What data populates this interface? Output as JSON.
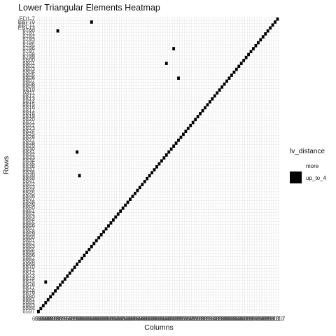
{
  "chart_data": {
    "type": "heatmap",
    "title": "Lower Triangular Elements Heatmap",
    "xlabel": "Columns",
    "ylabel": "Rows",
    "n": 100,
    "diagonal": "filled",
    "row_labels_top_to_bottom": [
      "ED1-7",
      "EBI-70",
      "EBI-11",
      "EBI-13",
      "6790",
      "6791",
      "6792",
      "6793",
      "6794",
      "6795",
      "6796",
      "6797",
      "6798",
      "6799",
      "6800",
      "6801",
      "6802",
      "6803",
      "6804",
      "6805",
      "6806",
      "6807",
      "6808",
      "6809",
      "6810",
      "6811",
      "6812",
      "6813",
      "6814",
      "6815",
      "6816",
      "6817",
      "6818",
      "6819",
      "6820",
      "6821",
      "6822",
      "6823",
      "6824",
      "6825",
      "6826",
      "6827",
      "6828",
      "6829",
      "6830",
      "6831",
      "6832",
      "6833",
      "6834",
      "6835",
      "6836",
      "6837",
      "6838",
      "6839",
      "6840",
      "6841",
      "6842",
      "6843",
      "6844",
      "6845",
      "6846",
      "6847",
      "6848",
      "6849",
      "6850",
      "6851",
      "6852",
      "6853",
      "6854",
      "6855",
      "6856",
      "6857",
      "6858",
      "6859",
      "6860",
      "6861",
      "6862",
      "6863",
      "6864",
      "6865",
      "6866",
      "6867",
      "6868",
      "6869",
      "6870",
      "6871",
      "6872",
      "6873",
      "6874",
      "6875",
      "6876",
      "6877",
      "6878",
      "6879",
      "6880",
      "6881",
      "6882",
      "6883",
      "6884",
      "6597"
    ],
    "x_tick_first": "6597",
    "x_tick_last": "ED1-7",
    "extra_cells": [
      {
        "row_from_top": 4,
        "col": 8
      },
      {
        "row_from_top": 1,
        "col": 22
      },
      {
        "row_from_top": 10,
        "col": 56
      },
      {
        "row_from_top": 15,
        "col": 53
      },
      {
        "row_from_top": 20,
        "col": 58
      },
      {
        "row_from_top": 45,
        "col": 16
      },
      {
        "row_from_top": 53,
        "col": 17
      },
      {
        "row_from_top": 89,
        "col": 3
      }
    ],
    "legend": {
      "title": "lv_distance",
      "entries": [
        {
          "label": "more",
          "color": "#ffffff"
        },
        {
          "label": "up_to_4",
          "color": "#000000"
        }
      ]
    }
  }
}
